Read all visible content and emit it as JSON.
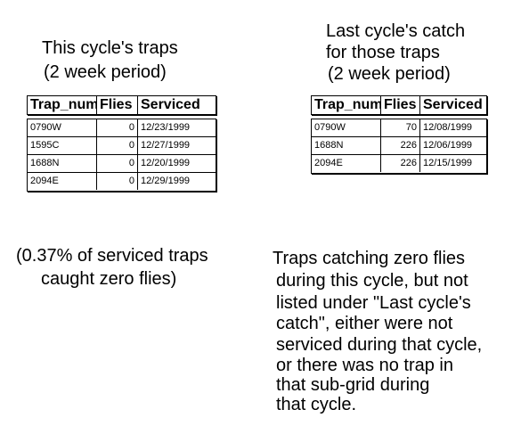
{
  "left": {
    "title_line1": "This cycle's traps",
    "title_line2": "(2 week period)",
    "headers": [
      "Trap_numb",
      "Flies",
      "Serviced"
    ],
    "rows": [
      {
        "trap": "0790W",
        "flies": "0",
        "serviced": "12/23/1999"
      },
      {
        "trap": "1595C",
        "flies": "0",
        "serviced": "12/27/1999"
      },
      {
        "trap": "1688N",
        "flies": "0",
        "serviced": "12/20/1999"
      },
      {
        "trap": "2094E",
        "flies": "0",
        "serviced": "12/29/1999"
      }
    ]
  },
  "right": {
    "title_line1": "Last cycle's catch",
    "title_line2": "for those traps",
    "title_line3": "(2 week period)",
    "headers": [
      "Trap_numb",
      "Flies",
      "Serviced"
    ],
    "rows": [
      {
        "trap": "0790W",
        "flies": "70",
        "serviced": "12/08/1999"
      },
      {
        "trap": "1688N",
        "flies": "226",
        "serviced": "12/06/1999"
      },
      {
        "trap": "2094E",
        "flies": "226",
        "serviced": "12/15/1999"
      }
    ]
  },
  "note_left": {
    "line1": "(0.37% of serviced traps",
    "line2": "caught zero flies)"
  },
  "note_right": {
    "line1": "Traps catching zero flies",
    "line2": "during this cycle, but not",
    "line3": "listed under \"Last cycle's",
    "line4": "catch\", either were not",
    "line5": "serviced during that cycle,",
    "line6": "or there was no trap in",
    "line7": "that sub-grid during",
    "line8": "that cycle."
  }
}
